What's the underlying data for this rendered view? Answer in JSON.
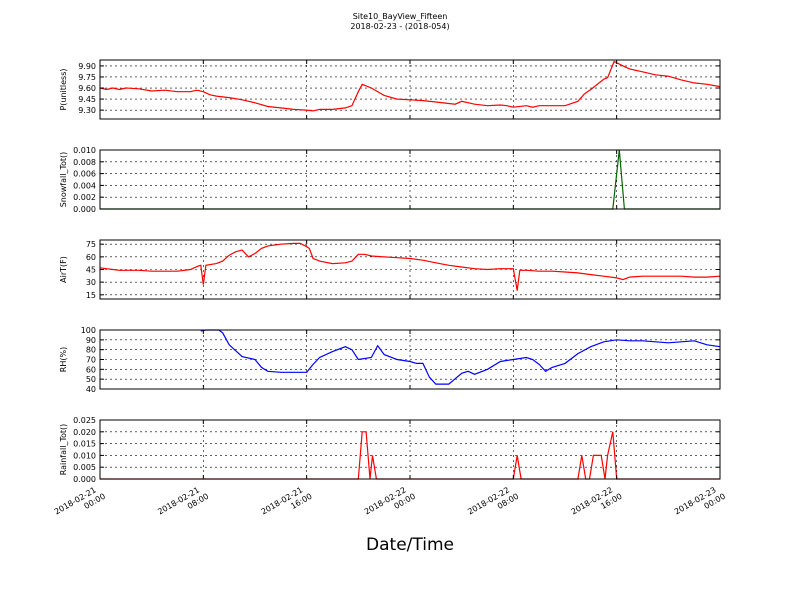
{
  "chart_data": {
    "title": "Site10_BayView_Fifteen",
    "subtitle": "2018-02-23 - (2018-054)",
    "xlabel": "Date/Time",
    "x_ticks": [
      "2018-02-21\n00:00",
      "2018-02-21\n08:00",
      "2018-02-21\n16:00",
      "2018-02-22\n00:00",
      "2018-02-22\n08:00",
      "2018-02-22\n16:00",
      "2018-02-23\n00:00"
    ],
    "x_range_hours": [
      0,
      48
    ],
    "grid": true,
    "panels": [
      {
        "type": "line",
        "ylabel": "P(unitless)",
        "ylim": [
          9.18,
          9.98
        ],
        "yticks": [
          9.3,
          9.45,
          9.6,
          9.75,
          9.9
        ],
        "ytick_labels": [
          "9.30",
          "9.45",
          "9.60",
          "9.75",
          "9.90"
        ],
        "color": "#ff0000",
        "points": [
          [
            0,
            9.6
          ],
          [
            0.5,
            9.58
          ],
          [
            1,
            9.6
          ],
          [
            1.5,
            9.58
          ],
          [
            2,
            9.6
          ],
          [
            3,
            9.59
          ],
          [
            4,
            9.56
          ],
          [
            5,
            9.57
          ],
          [
            6,
            9.55
          ],
          [
            7,
            9.55
          ],
          [
            7.5,
            9.57
          ],
          [
            8,
            9.55
          ],
          [
            8.5,
            9.51
          ],
          [
            9,
            9.49
          ],
          [
            10,
            9.47
          ],
          [
            11,
            9.44
          ],
          [
            12,
            9.4
          ],
          [
            13,
            9.35
          ],
          [
            14,
            9.33
          ],
          [
            15,
            9.31
          ],
          [
            16,
            9.3
          ],
          [
            16.5,
            9.29
          ],
          [
            17,
            9.31
          ],
          [
            18,
            9.31
          ],
          [
            19,
            9.33
          ],
          [
            19.5,
            9.36
          ],
          [
            20,
            9.55
          ],
          [
            20.3,
            9.65
          ],
          [
            21,
            9.6
          ],
          [
            22,
            9.5
          ],
          [
            23,
            9.45
          ],
          [
            24,
            9.44
          ],
          [
            25,
            9.43
          ],
          [
            26,
            9.41
          ],
          [
            27,
            9.39
          ],
          [
            27.5,
            9.38
          ],
          [
            28,
            9.42
          ],
          [
            29,
            9.38
          ],
          [
            30,
            9.36
          ],
          [
            31,
            9.37
          ],
          [
            31.5,
            9.36
          ],
          [
            32,
            9.34
          ],
          [
            33,
            9.36
          ],
          [
            33.5,
            9.34
          ],
          [
            34,
            9.36
          ],
          [
            35,
            9.36
          ],
          [
            36,
            9.36
          ],
          [
            37,
            9.42
          ],
          [
            37.5,
            9.52
          ],
          [
            38,
            9.58
          ],
          [
            39,
            9.72
          ],
          [
            39.3,
            9.74
          ],
          [
            39.8,
            9.96
          ],
          [
            40.5,
            9.9
          ],
          [
            41,
            9.86
          ],
          [
            42,
            9.82
          ],
          [
            43,
            9.78
          ],
          [
            44,
            9.76
          ],
          [
            45,
            9.71
          ],
          [
            46,
            9.67
          ],
          [
            47,
            9.65
          ],
          [
            48,
            9.62
          ]
        ]
      },
      {
        "type": "line",
        "ylabel": "Snowfall_Tot()",
        "ylim": [
          0,
          0.01
        ],
        "yticks": [
          0,
          0.002,
          0.004,
          0.006,
          0.008,
          0.01
        ],
        "ytick_labels": [
          "0.000",
          "0.002",
          "0.004",
          "0.006",
          "0.008",
          "0.010"
        ],
        "color": "#006400",
        "points": [
          [
            0,
            0
          ],
          [
            39.7,
            0
          ],
          [
            40.2,
            0.01
          ],
          [
            40.6,
            0
          ],
          [
            48,
            0
          ]
        ]
      },
      {
        "type": "line",
        "ylabel": "AirT(F)",
        "ylim": [
          10,
          80
        ],
        "yticks": [
          15,
          30,
          45,
          60,
          75
        ],
        "ytick_labels": [
          "15",
          "30",
          "45",
          "60",
          "75"
        ],
        "color": "#ff0000",
        "points": [
          [
            0,
            47
          ],
          [
            0.5,
            46
          ],
          [
            1,
            45
          ],
          [
            1.5,
            44
          ],
          [
            3,
            44
          ],
          [
            4,
            43
          ],
          [
            5,
            43
          ],
          [
            6,
            43
          ],
          [
            7,
            45
          ],
          [
            7.6,
            49
          ],
          [
            7.8,
            50
          ],
          [
            8,
            27
          ],
          [
            8.2,
            50
          ],
          [
            9,
            52
          ],
          [
            9.5,
            55
          ],
          [
            10,
            62
          ],
          [
            10.5,
            66
          ],
          [
            11,
            68
          ],
          [
            11.5,
            60
          ],
          [
            12,
            64
          ],
          [
            12.5,
            70
          ],
          [
            13,
            73
          ],
          [
            14,
            75
          ],
          [
            15,
            76
          ],
          [
            15.5,
            76
          ],
          [
            16,
            72
          ],
          [
            16.2,
            70
          ],
          [
            16.5,
            58
          ],
          [
            17,
            55
          ],
          [
            18,
            52
          ],
          [
            19,
            53
          ],
          [
            19.5,
            55
          ],
          [
            20,
            63
          ],
          [
            20.5,
            63
          ],
          [
            21,
            61
          ],
          [
            22,
            60
          ],
          [
            23,
            59
          ],
          [
            24,
            58
          ],
          [
            25,
            56
          ],
          [
            26,
            53
          ],
          [
            27,
            50
          ],
          [
            28,
            48
          ],
          [
            29,
            46
          ],
          [
            30,
            45
          ],
          [
            31,
            46
          ],
          [
            32,
            46
          ],
          [
            32.3,
            20
          ],
          [
            32.5,
            44
          ],
          [
            33,
            44
          ],
          [
            34,
            43
          ],
          [
            35,
            43
          ],
          [
            36,
            42
          ],
          [
            37,
            41
          ],
          [
            38,
            39
          ],
          [
            39,
            37
          ],
          [
            40,
            35
          ],
          [
            40.5,
            33
          ],
          [
            41,
            36
          ],
          [
            42,
            37
          ],
          [
            43,
            37
          ],
          [
            44,
            37
          ],
          [
            45,
            37
          ],
          [
            46,
            36
          ],
          [
            47,
            36
          ],
          [
            48,
            37
          ]
        ]
      },
      {
        "type": "line",
        "ylabel": "RH(%)",
        "ylim": [
          40,
          100
        ],
        "yticks": [
          40,
          50,
          60,
          70,
          80,
          90,
          100
        ],
        "ytick_labels": [
          "40",
          "50",
          "60",
          "70",
          "80",
          "90",
          "100"
        ],
        "color": "#0000ff",
        "points": [
          [
            7.8,
            99
          ],
          [
            8.2,
            100
          ],
          [
            9.2,
            100
          ],
          [
            9.5,
            97
          ],
          [
            10,
            85
          ],
          [
            11,
            73
          ],
          [
            12,
            70
          ],
          [
            12.5,
            62
          ],
          [
            13,
            58
          ],
          [
            14,
            57
          ],
          [
            15,
            57
          ],
          [
            16,
            57
          ],
          [
            16.5,
            65
          ],
          [
            17,
            72
          ],
          [
            18,
            78
          ],
          [
            19,
            83
          ],
          [
            19.5,
            80
          ],
          [
            20,
            70
          ],
          [
            21,
            72
          ],
          [
            21.5,
            84
          ],
          [
            22,
            75
          ],
          [
            23,
            70
          ],
          [
            24,
            68
          ],
          [
            24.5,
            66
          ],
          [
            25,
            66
          ],
          [
            25.5,
            52
          ],
          [
            26,
            45
          ],
          [
            27,
            45
          ],
          [
            28,
            56
          ],
          [
            28.5,
            58
          ],
          [
            29,
            55
          ],
          [
            30,
            60
          ],
          [
            31,
            68
          ],
          [
            32,
            70
          ],
          [
            33,
            72
          ],
          [
            33.5,
            70
          ],
          [
            34,
            65
          ],
          [
            34.5,
            58
          ],
          [
            35,
            62
          ],
          [
            36,
            66
          ],
          [
            37,
            76
          ],
          [
            38,
            83
          ],
          [
            39,
            88
          ],
          [
            40,
            90
          ],
          [
            41,
            89
          ],
          [
            42,
            89
          ],
          [
            43,
            88
          ],
          [
            44,
            87
          ],
          [
            45,
            88
          ],
          [
            46,
            89
          ],
          [
            47,
            85
          ],
          [
            48,
            83
          ]
        ]
      },
      {
        "type": "line",
        "ylabel": "Rainfall_Tot()",
        "ylim": [
          0,
          0.025
        ],
        "yticks": [
          0,
          0.005,
          0.01,
          0.015,
          0.02,
          0.025
        ],
        "ytick_labels": [
          "0.000",
          "0.005",
          "0.010",
          "0.015",
          "0.020",
          "0.025"
        ],
        "color": "#ff0000",
        "points": [
          [
            0,
            0
          ],
          [
            20,
            0
          ],
          [
            20.3,
            0.02
          ],
          [
            20.6,
            0.02
          ],
          [
            20.9,
            0
          ],
          [
            21.1,
            0.01
          ],
          [
            21.4,
            0
          ],
          [
            32,
            0
          ],
          [
            32.3,
            0.01
          ],
          [
            32.6,
            0
          ],
          [
            37,
            0
          ],
          [
            37.3,
            0.01
          ],
          [
            37.6,
            0
          ],
          [
            37.9,
            0
          ],
          [
            38.2,
            0.01
          ],
          [
            38.8,
            0.01
          ],
          [
            39.1,
            0
          ],
          [
            39.3,
            0.01
          ],
          [
            39.7,
            0.02
          ],
          [
            40,
            0
          ],
          [
            48,
            0
          ]
        ]
      }
    ]
  }
}
